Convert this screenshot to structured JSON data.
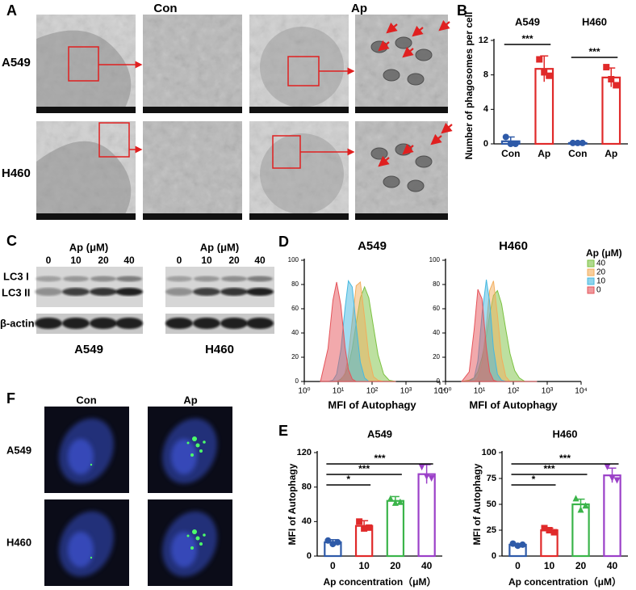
{
  "panel_labels": [
    "A",
    "B",
    "C",
    "D",
    "E",
    "F"
  ],
  "tem": {
    "columns": [
      "Con",
      "Ap"
    ],
    "rows": [
      "A549",
      "H460"
    ]
  },
  "blot": {
    "treatment": "Ap (μM)",
    "doses": [
      0,
      10,
      20,
      40
    ],
    "bands": [
      "LC3 I",
      "LC3 II",
      "β-actin"
    ],
    "cell_lines": [
      "A549",
      "H460"
    ]
  },
  "fluorescence": {
    "columns": [
      "Con",
      "Ap"
    ],
    "rows": [
      "A549",
      "H460"
    ]
  },
  "chart_data": [
    {
      "type": "bar",
      "y_label": "Number of phagosomes per cell",
      "groups": [
        "A549",
        "H460"
      ],
      "categories": [
        "Con",
        "Ap",
        "Con",
        "Ap"
      ],
      "values": [
        0.3,
        8.7,
        0.1,
        7.7
      ],
      "errors": [
        0.5,
        1.5,
        0.05,
        1.1
      ],
      "points": [
        [
          0.8,
          0,
          0
        ],
        [
          9.8,
          8.3,
          7.9
        ],
        [
          0.1,
          0.1,
          0.1
        ],
        [
          8.9,
          7.5,
          6.8
        ]
      ],
      "colors": [
        "#2e5aa8",
        "#e02a2a",
        "#2e5aa8",
        "#e02a2a"
      ],
      "markers": [
        "circle",
        "square",
        "circle",
        "square"
      ],
      "significance": [
        "***",
        "***"
      ],
      "ylim": [
        0,
        12
      ],
      "yticks": [
        0,
        4,
        8,
        12
      ]
    },
    {
      "type": "area",
      "title": "A549",
      "x_label": "MFI of Autophagy",
      "log_x": true,
      "x": [
        3,
        5,
        7,
        9,
        12,
        16,
        20,
        26,
        34,
        45,
        60,
        80,
        110,
        150,
        220,
        320,
        500
      ],
      "series": [
        {
          "color": "#7cc242",
          "values": [
            0,
            0,
            0,
            0,
            2,
            6,
            13,
            27,
            48,
            69,
            78,
            69,
            45,
            22,
            6,
            1,
            0
          ]
        },
        {
          "color": "#f2ad5c",
          "values": [
            0,
            0,
            0,
            0,
            1,
            7,
            21,
            50,
            79,
            82,
            53,
            21,
            4,
            1,
            0,
            0,
            0
          ]
        },
        {
          "color": "#45b8e0",
          "values": [
            0,
            0,
            1,
            6,
            26,
            61,
            83,
            78,
            46,
            16,
            3,
            0,
            0,
            0,
            0,
            0,
            0
          ]
        },
        {
          "color": "#e5545a",
          "values": [
            0,
            27,
            67,
            82,
            63,
            28,
            10,
            2,
            0,
            0,
            0,
            0,
            0,
            0,
            0,
            0,
            0
          ]
        }
      ],
      "xlim": [
        1,
        10000
      ],
      "xticks": [
        {
          "value": 1,
          "label": "10⁰"
        },
        {
          "value": 10,
          "label": "10¹"
        },
        {
          "value": 100,
          "label": "10²"
        },
        {
          "value": 1000,
          "label": "10³"
        },
        {
          "value": 10000,
          "label": "10⁴"
        }
      ],
      "ylim": [
        0,
        100
      ],
      "yticks": [
        0,
        20,
        40,
        60,
        80,
        100
      ]
    },
    {
      "type": "area",
      "title": "H460",
      "x_label": "MFI of Autophagy",
      "log_x": true,
      "legend_title": "Ap (μM)",
      "x": [
        3,
        5,
        7,
        9,
        12,
        16,
        20,
        26,
        34,
        45,
        60,
        80,
        110,
        150,
        220,
        320,
        500
      ],
      "series": [
        {
          "name": "40",
          "color": "#7cc242",
          "values": [
            0,
            1,
            3,
            8,
            20,
            38,
            55,
            71,
            75,
            64,
            43,
            23,
            9,
            3,
            0,
            0,
            0
          ]
        },
        {
          "name": "20",
          "color": "#f2ad5c",
          "values": [
            0,
            0,
            0,
            3,
            15,
            46,
            75,
            83,
            55,
            20,
            4,
            0,
            0,
            0,
            0,
            0,
            0
          ]
        },
        {
          "name": "10",
          "color": "#45b8e0",
          "values": [
            0,
            0,
            3,
            17,
            56,
            84,
            66,
            27,
            6,
            1,
            0,
            0,
            0,
            0,
            0,
            0,
            0
          ]
        },
        {
          "name": "0",
          "color": "#e5545a",
          "values": [
            0,
            8,
            43,
            76,
            68,
            28,
            8,
            1,
            0,
            0,
            0,
            0,
            0,
            0,
            0,
            0,
            0
          ]
        }
      ],
      "xlim": [
        1,
        10000
      ],
      "xticks": [
        {
          "value": 1,
          "label": "10⁰"
        },
        {
          "value": 10,
          "label": "10¹"
        },
        {
          "value": 100,
          "label": "10²"
        },
        {
          "value": 1000,
          "label": "10³"
        },
        {
          "value": 10000,
          "label": "10⁴"
        }
      ],
      "ylim": [
        0,
        100
      ],
      "yticks": [
        0,
        20,
        40,
        60,
        80,
        100
      ]
    },
    {
      "type": "bar",
      "title": "A549",
      "x_label": "Ap concentration（μM）",
      "y_label": "MFI of Autophagy",
      "categories": [
        0,
        10,
        20,
        40
      ],
      "values": [
        16,
        35,
        64,
        95
      ],
      "errors": [
        3,
        6,
        5,
        11
      ],
      "points": [
        [
          18,
          14,
          16
        ],
        [
          40,
          32,
          33
        ],
        [
          67,
          62,
          63
        ],
        [
          103,
          92,
          90
        ]
      ],
      "colors": [
        "#2e5aa8",
        "#e02a2a",
        "#3bb44a",
        "#9b40c8"
      ],
      "markers": [
        "circle",
        "square",
        "triangle",
        "triangle-down"
      ],
      "significance": [
        "*",
        "***",
        "***"
      ],
      "ylim": [
        0,
        120
      ],
      "yticks": [
        0,
        40,
        80,
        120
      ]
    },
    {
      "type": "bar",
      "title": "H460",
      "x_label": "Ap concentration（μM）",
      "y_label": "MFI of Autophagy",
      "categories": [
        0,
        10,
        20,
        40
      ],
      "values": [
        11,
        25,
        50,
        78
      ],
      "errors": [
        1,
        2,
        5,
        7
      ],
      "points": [
        [
          12,
          10,
          11
        ],
        [
          27,
          25,
          23
        ],
        [
          56,
          45,
          49
        ],
        [
          86,
          75,
          73
        ]
      ],
      "colors": [
        "#2e5aa8",
        "#e02a2a",
        "#3bb44a",
        "#9b40c8"
      ],
      "markers": [
        "circle",
        "square",
        "triangle",
        "triangle-down"
      ],
      "significance": [
        "*",
        "***",
        "***"
      ],
      "ylim": [
        0,
        100
      ],
      "yticks": [
        0,
        25,
        50,
        75,
        100
      ]
    }
  ]
}
